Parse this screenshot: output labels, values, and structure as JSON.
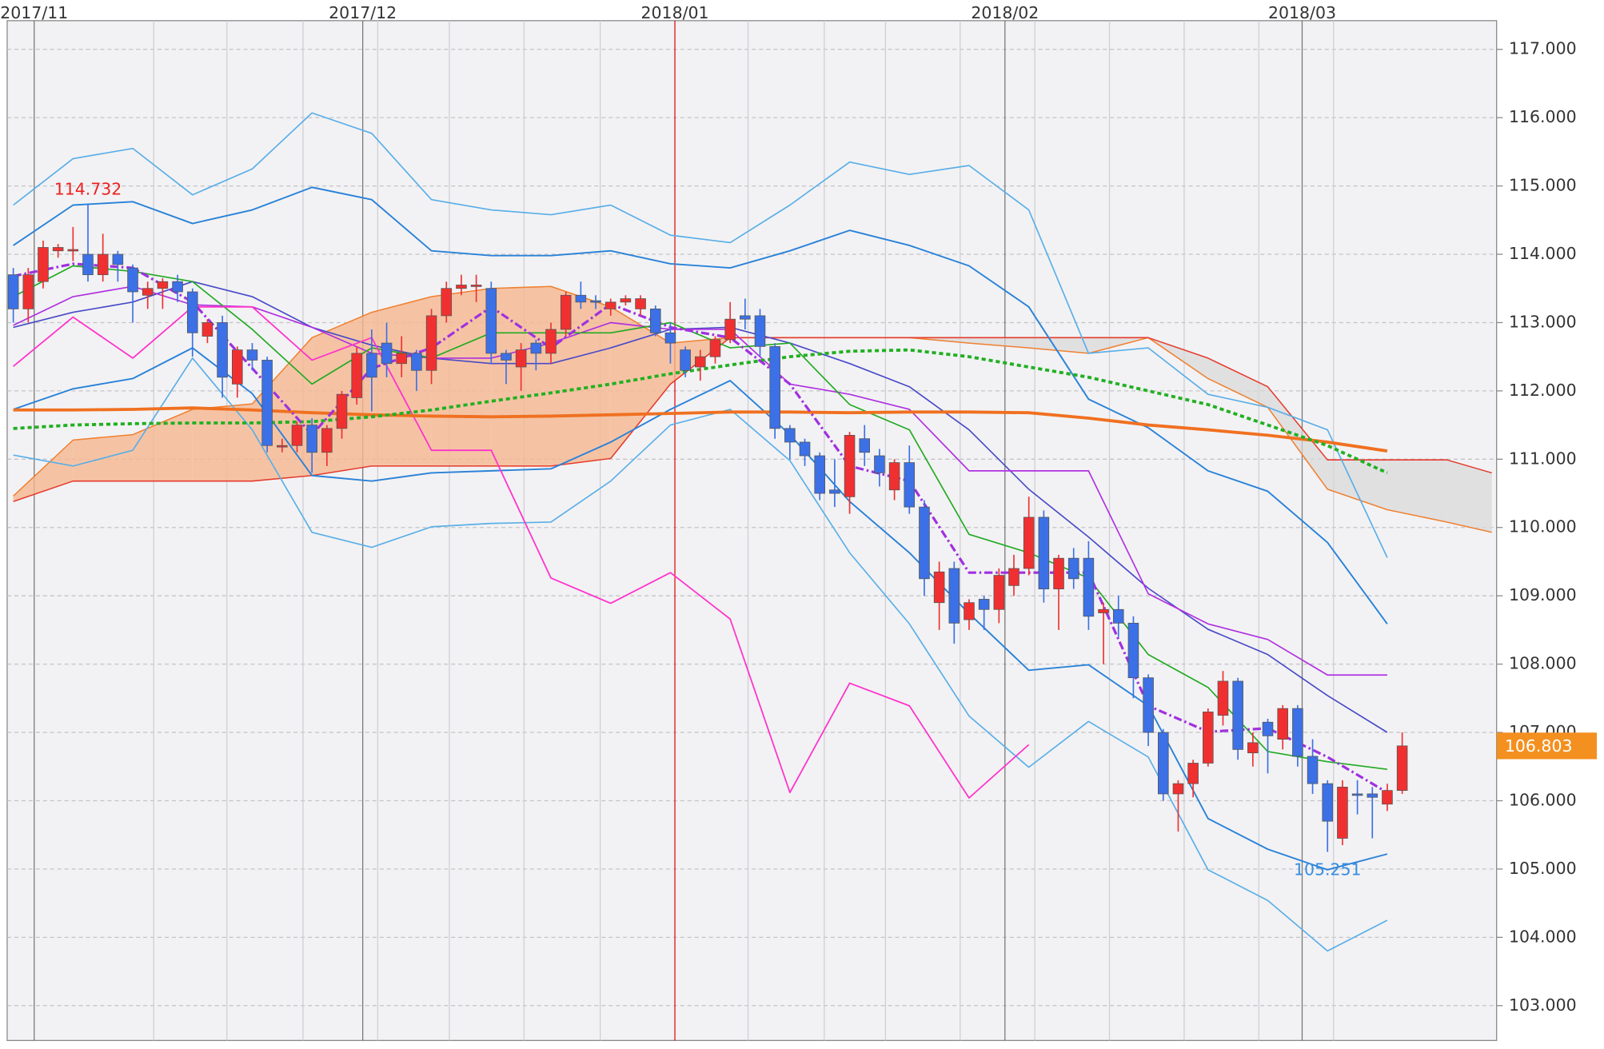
{
  "chart_data": {
    "type": "candlestick",
    "xlim": [
      -0.41,
      99.32
    ],
    "ylim": [
      102.49,
      117.42
    ],
    "xticks": [
      {
        "value": 1.4,
        "label": "2017/11"
      },
      {
        "value": 23.4,
        "label": "2017/12"
      },
      {
        "value": 44.3,
        "label": "2018/01"
      },
      {
        "value": 66.4,
        "label": "2018/02"
      },
      {
        "value": 86.3,
        "label": "2018/03"
      }
    ],
    "xtick_colors": [
      "#777777",
      "#777777",
      "#dd1111",
      "#777777",
      "#777777"
    ],
    "xgrid": [
      9.4,
      14.3,
      19.4,
      24.4,
      29.2,
      34.2,
      39.3,
      49.2,
      54.3,
      58.4,
      63.4,
      68.4,
      73.4,
      78.4,
      83.4,
      88.4
    ],
    "yticks": [
      {
        "value": 103,
        "label": "103.000"
      },
      {
        "value": 104,
        "label": "104.000"
      },
      {
        "value": 105,
        "label": "105.000"
      },
      {
        "value": 106,
        "label": "106.000"
      },
      {
        "value": 107,
        "label": "107.000"
      },
      {
        "value": 108,
        "label": "108.000"
      },
      {
        "value": 109,
        "label": "109.000"
      },
      {
        "value": 110,
        "label": "110.000"
      },
      {
        "value": 111,
        "label": "111.000"
      },
      {
        "value": 112,
        "label": "112.000"
      },
      {
        "value": 113,
        "label": "113.000"
      },
      {
        "value": 114,
        "label": "114.000"
      },
      {
        "value": 115,
        "label": "115.000"
      },
      {
        "value": 116,
        "label": "116.000"
      },
      {
        "value": 117,
        "label": "117.000"
      }
    ],
    "grid": true,
    "up_color": "#f03030",
    "down_color": "#3c70e6",
    "candles": {
      "open": [
        113.7,
        113.2,
        113.6,
        114.05,
        114.05,
        114.0,
        113.7,
        114.0,
        113.8,
        113.4,
        113.5,
        113.6,
        113.45,
        112.8,
        113.0,
        112.1,
        112.6,
        112.45,
        111.2,
        111.2,
        111.5,
        111.1,
        111.45,
        111.9,
        112.55,
        112.7,
        112.4,
        112.55,
        112.3,
        113.1,
        113.5,
        113.55,
        113.5,
        112.55,
        112.35,
        112.7,
        112.55,
        112.9,
        113.4,
        113.32,
        113.2,
        113.3,
        113.2,
        113.2,
        112.85,
        112.6,
        112.35,
        112.5,
        112.75,
        113.1,
        113.1,
        112.65,
        111.45,
        111.25,
        111.05,
        110.55,
        110.45,
        111.3,
        111.05,
        110.55,
        110.95,
        110.3,
        108.9,
        109.4,
        108.65,
        108.95,
        108.8,
        109.15,
        109.4,
        110.15,
        109.1,
        109.55,
        109.55,
        108.75,
        108.8,
        108.6,
        107.8,
        107.0,
        106.1,
        106.25,
        106.55,
        107.25,
        107.75,
        106.7,
        107.15,
        106.9,
        107.35,
        106.65,
        106.25,
        105.45,
        106.1,
        106.1,
        105.95,
        106.15
      ],
      "high": [
        113.8,
        113.8,
        114.2,
        114.15,
        114.4,
        114.732,
        114.3,
        114.05,
        113.85,
        113.6,
        113.65,
        113.7,
        113.5,
        113.05,
        113.1,
        112.65,
        112.7,
        112.5,
        111.3,
        111.55,
        111.6,
        111.5,
        112.0,
        112.65,
        112.9,
        113.0,
        112.8,
        112.6,
        113.2,
        113.6,
        113.7,
        113.7,
        113.6,
        112.6,
        112.7,
        112.75,
        113.0,
        113.45,
        113.6,
        113.4,
        113.35,
        113.4,
        113.4,
        113.25,
        113.0,
        112.65,
        112.6,
        112.8,
        113.3,
        113.35,
        113.2,
        112.7,
        111.5,
        111.3,
        111.1,
        111.0,
        111.4,
        111.5,
        111.15,
        111.0,
        111.2,
        110.4,
        109.5,
        109.5,
        108.95,
        109.0,
        109.4,
        109.6,
        110.45,
        110.25,
        109.6,
        109.7,
        109.8,
        108.9,
        109.0,
        108.7,
        107.85,
        107.05,
        106.3,
        106.6,
        107.35,
        107.9,
        107.8,
        107.0,
        107.2,
        107.4,
        107.4,
        106.9,
        106.3,
        106.3,
        106.3,
        106.2,
        106.25,
        107.0
      ],
      "low": [
        113.0,
        113.0,
        113.5,
        113.95,
        113.9,
        113.6,
        113.6,
        113.6,
        113.0,
        113.2,
        113.2,
        113.3,
        112.5,
        112.7,
        111.9,
        111.9,
        112.3,
        111.1,
        111.1,
        111.1,
        110.8,
        110.9,
        111.3,
        111.8,
        111.7,
        112.2,
        112.2,
        112.0,
        112.1,
        113.0,
        113.4,
        113.3,
        112.4,
        112.1,
        112.0,
        112.3,
        112.4,
        112.8,
        113.2,
        113.2,
        113.1,
        113.25,
        113.1,
        112.8,
        112.4,
        112.2,
        112.15,
        112.4,
        112.7,
        112.9,
        112.5,
        111.3,
        111.0,
        110.9,
        110.4,
        110.3,
        110.2,
        110.9,
        110.6,
        110.4,
        110.2,
        109.0,
        108.5,
        108.3,
        108.5,
        108.5,
        108.6,
        109.0,
        109.3,
        108.9,
        108.5,
        109.1,
        108.5,
        108.0,
        108.4,
        107.5,
        106.8,
        106.0,
        105.55,
        106.05,
        106.5,
        107.1,
        106.6,
        106.5,
        106.4,
        106.75,
        106.5,
        106.1,
        105.251,
        105.35,
        105.8,
        105.45,
        105.85,
        106.1
      ],
      "close": [
        113.2,
        113.7,
        114.1,
        114.1,
        114.07,
        113.7,
        114.0,
        113.85,
        113.45,
        113.5,
        113.6,
        113.45,
        112.85,
        113.0,
        112.2,
        112.6,
        112.45,
        111.2,
        111.2,
        111.5,
        111.1,
        111.45,
        111.95,
        112.55,
        112.2,
        112.4,
        112.55,
        112.3,
        113.1,
        113.5,
        113.55,
        113.55,
        112.55,
        112.45,
        112.6,
        112.55,
        112.9,
        113.4,
        113.3,
        113.3,
        113.3,
        113.35,
        113.35,
        112.85,
        112.7,
        112.3,
        112.5,
        112.75,
        113.05,
        113.05,
        112.65,
        111.45,
        111.25,
        111.05,
        110.5,
        110.5,
        111.35,
        111.1,
        110.8,
        110.95,
        110.3,
        109.25,
        109.35,
        108.6,
        108.9,
        108.8,
        109.3,
        109.4,
        110.15,
        109.1,
        109.55,
        109.25,
        108.7,
        108.8,
        108.6,
        107.8,
        107.0,
        106.1,
        106.25,
        106.55,
        107.3,
        107.75,
        106.75,
        106.85,
        106.95,
        107.35,
        106.65,
        106.25,
        105.7,
        106.2,
        106.08,
        106.05,
        106.15,
        106.803
      ]
    },
    "high_label": "114.732",
    "low_label": "105.251",
    "last_label": "106.803",
    "high_label_color": "#ee2222",
    "low_label_color": "#3a8ee0",
    "last_label_color": "#f39020",
    "line_x": [
      0,
      4,
      8,
      12,
      16,
      20,
      24,
      28,
      32,
      36,
      40,
      44,
      48,
      52,
      56,
      60,
      64,
      68,
      72,
      76,
      80,
      84,
      88,
      92,
      96,
      99
    ],
    "cloud": [
      0,
      1
    ],
    "cloud_colors": [
      "#f5b690",
      "#d8d8d8"
    ],
    "lines": [
      {
        "color": "#f08030",
        "width": 1.2,
        "values": [
          110.46,
          111.28,
          111.36,
          111.73,
          111.81,
          112.78,
          113.15,
          113.38,
          113.5,
          113.53,
          113.23,
          112.7,
          112.78,
          112.78,
          112.78,
          112.78,
          112.7,
          112.63,
          112.55,
          112.78,
          112.18,
          111.76,
          110.56,
          110.26,
          110.08,
          109.93
        ]
      },
      {
        "color": "#e53b2c",
        "width": 1.2,
        "values": [
          110.38,
          110.68,
          110.68,
          110.68,
          110.68,
          110.76,
          110.9,
          110.9,
          110.9,
          110.9,
          111.01,
          112.1,
          112.78,
          112.78,
          112.78,
          112.78,
          112.78,
          112.78,
          112.78,
          112.78,
          112.48,
          112.06,
          110.99,
          110.99,
          110.99,
          110.8
        ]
      },
      {
        "color": "#5aaee8",
        "width": 1.3,
        "values": [
          114.72,
          115.4,
          115.55,
          114.87,
          115.25,
          116.07,
          115.77,
          114.8,
          114.65,
          114.58,
          114.72,
          114.28,
          114.17,
          114.72,
          115.35,
          115.17,
          115.3,
          114.65,
          112.55,
          112.63,
          111.95,
          111.76,
          111.43,
          109.56,
          null,
          null
        ]
      },
      {
        "color": "#2a82d8",
        "width": 1.5,
        "values": [
          114.13,
          114.72,
          114.77,
          114.45,
          114.65,
          114.98,
          114.8,
          114.05,
          113.98,
          113.98,
          114.05,
          113.86,
          113.8,
          114.05,
          114.35,
          114.13,
          113.83,
          113.23,
          111.88,
          111.46,
          110.83,
          110.53,
          109.78,
          108.59,
          null,
          null
        ]
      },
      {
        "color": "#4a4ac8",
        "width": 1.3,
        "values": [
          112.93,
          113.15,
          113.3,
          113.6,
          113.38,
          112.93,
          112.67,
          112.48,
          112.4,
          112.4,
          112.63,
          112.9,
          112.93,
          112.7,
          112.4,
          112.06,
          111.43,
          110.56,
          109.86,
          109.11,
          108.51,
          108.14,
          107.54,
          107.0,
          null,
          null
        ]
      },
      {
        "color": "#2a82d8",
        "width": 1.5,
        "values": [
          111.73,
          112.03,
          112.18,
          112.63,
          111.96,
          110.76,
          110.68,
          110.8,
          110.83,
          110.86,
          111.25,
          111.73,
          112.15,
          111.36,
          110.38,
          109.63,
          108.74,
          107.91,
          107.99,
          107.39,
          105.74,
          105.29,
          104.99,
          105.22,
          null,
          null
        ]
      },
      {
        "color": "#5aaee8",
        "width": 1.3,
        "values": [
          111.06,
          110.9,
          111.13,
          112.48,
          111.43,
          109.93,
          109.71,
          110.01,
          110.06,
          110.08,
          110.68,
          111.5,
          111.73,
          110.98,
          109.63,
          108.59,
          107.24,
          106.49,
          107.16,
          106.64,
          104.99,
          104.54,
          103.8,
          104.25,
          null,
          null
        ]
      },
      {
        "color": "#b030e0",
        "width": 1.3,
        "values": [
          112.96,
          113.38,
          113.53,
          113.26,
          113.23,
          112.93,
          112.55,
          112.48,
          112.48,
          112.7,
          113.0,
          112.9,
          112.9,
          112.1,
          111.95,
          111.73,
          110.83,
          110.83,
          110.83,
          109.03,
          108.59,
          108.36,
          107.84,
          107.84,
          null,
          null
        ]
      },
      {
        "color": "#22aa22",
        "width": 1.3,
        "values": [
          113.38,
          113.83,
          113.75,
          113.6,
          112.9,
          112.1,
          112.63,
          112.48,
          112.85,
          112.85,
          112.85,
          113.0,
          112.63,
          112.7,
          111.8,
          111.43,
          109.9,
          109.63,
          109.26,
          108.14,
          107.66,
          106.72,
          106.57,
          106.46,
          null,
          null
        ]
      },
      {
        "color": "#ff33cc",
        "width": 1.4,
        "values": [
          112.36,
          113.08,
          112.48,
          113.23,
          113.23,
          112.45,
          112.78,
          111.13,
          111.13,
          109.26,
          108.89,
          109.34,
          108.66,
          106.12,
          107.72,
          107.39,
          106.04,
          106.82,
          null,
          null,
          null,
          null,
          null,
          null,
          null,
          null
        ]
      },
      {
        "color": "#f07020",
        "width": 3,
        "values": [
          111.72,
          111.72,
          111.73,
          111.75,
          111.72,
          111.68,
          111.65,
          111.63,
          111.62,
          111.63,
          111.65,
          111.67,
          111.69,
          111.69,
          111.68,
          111.69,
          111.69,
          111.68,
          111.6,
          111.5,
          111.43,
          111.35,
          111.25,
          111.12,
          null,
          null
        ]
      },
      {
        "color": "#22b022",
        "width": 3,
        "dash": "4 3",
        "values": [
          111.45,
          111.5,
          111.52,
          111.53,
          111.53,
          111.55,
          111.62,
          111.72,
          111.85,
          111.97,
          112.1,
          112.25,
          112.38,
          112.5,
          112.58,
          112.6,
          112.5,
          112.35,
          112.2,
          112.0,
          111.8,
          111.5,
          111.2,
          110.8,
          null,
          null
        ]
      },
      {
        "color": "#a030e0",
        "width": 2.5,
        "dash": "8 3 2 3",
        "values": [
          113.68,
          113.86,
          113.8,
          113.3,
          112.33,
          111.36,
          112.33,
          112.63,
          113.23,
          112.63,
          113.27,
          112.93,
          112.78,
          112.1,
          110.9,
          110.68,
          109.34,
          109.34,
          109.34,
          107.39,
          107.01,
          107.06,
          106.64,
          106.12,
          null,
          null
        ]
      }
    ]
  }
}
